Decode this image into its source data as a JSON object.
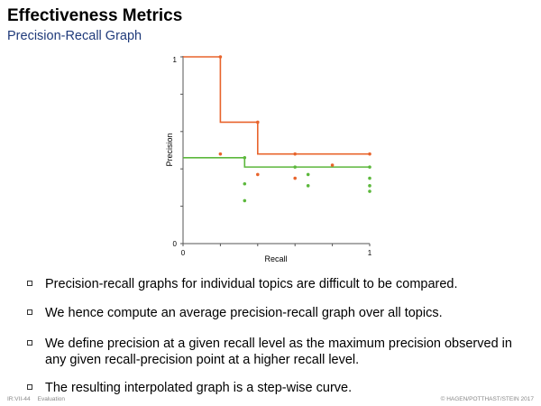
{
  "slide": {
    "title": "Effectiveness Metrics",
    "subtitle": "Precision-Recall Graph"
  },
  "chart_data": {
    "type": "scatter",
    "xlabel": "Recall",
    "ylabel": "Precision",
    "xlim": [
      0,
      1
    ],
    "ylim": [
      0,
      1
    ],
    "x_ticks": [
      "0",
      "1"
    ],
    "y_ticks": [
      "0",
      "1"
    ],
    "grid": false,
    "colors": {
      "orange": "#e8642c",
      "green": "#5cb83c"
    },
    "series": [
      {
        "color": "orange",
        "points": [
          [
            0.2,
            1.0
          ],
          [
            0.4,
            0.65
          ],
          [
            0.6,
            0.48
          ],
          [
            0.8,
            0.42
          ],
          [
            1.0,
            0.48
          ],
          [
            0.2,
            0.48
          ],
          [
            0.4,
            0.37
          ],
          [
            0.6,
            0.35
          ]
        ],
        "interpolated": [
          [
            0,
            1.0
          ],
          [
            0.2,
            1.0
          ],
          [
            0.2,
            0.65
          ],
          [
            0.4,
            0.65
          ],
          [
            0.4,
            0.48
          ],
          [
            1.0,
            0.48
          ]
        ]
      },
      {
        "color": "green",
        "points": [
          [
            0.33,
            0.46
          ],
          [
            0.6,
            0.41
          ],
          [
            1.0,
            0.41
          ],
          [
            0.33,
            0.32
          ],
          [
            0.67,
            0.37
          ],
          [
            0.67,
            0.31
          ],
          [
            1.0,
            0.35
          ],
          [
            1.0,
            0.31
          ],
          [
            1.0,
            0.28
          ],
          [
            0.33,
            0.23
          ]
        ],
        "interpolated": [
          [
            0,
            0.46
          ],
          [
            0.33,
            0.46
          ],
          [
            0.33,
            0.41
          ],
          [
            1.0,
            0.41
          ]
        ]
      }
    ]
  },
  "bullets": [
    "Precision-recall graphs for individual topics are difficult to be compared.",
    "We hence compute an average precision-recall graph over all topics.",
    "We define precision at a given recall level as the maximum precision observed in any given recall-precision point at a higher recall level.",
    "The resulting interpolated graph is a step-wise curve."
  ],
  "footer": {
    "page": "IR:VII-44",
    "section": "Evaluation",
    "copyright": "© HAGEN/POTTHAST/STEIN 2017"
  }
}
